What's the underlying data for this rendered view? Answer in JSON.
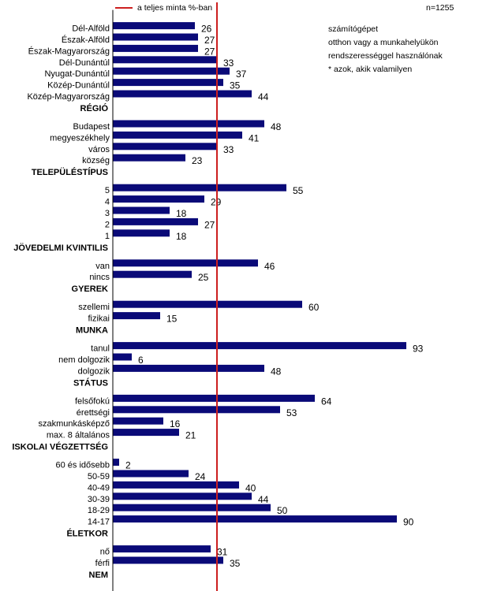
{
  "chart_data": {
    "type": "bar",
    "orientation": "horizontal",
    "xlim": [
      0,
      63
    ],
    "reference": {
      "label": "a teljes minta %-ban",
      "value": 33
    },
    "sample_size": "n=1255",
    "note_lines": [
      "számítógépet",
      "otthon vagy a munkahelyükön",
      "rendszerességgel használónak",
      "* azok, akik valamilyen"
    ],
    "colors": {
      "bar": "#0a0a78",
      "reference_line": "#cc1f1f",
      "axis": "#000000"
    },
    "groups": [
      {
        "title": "NEM",
        "items": [
          {
            "label": "férfi",
            "value": 35
          },
          {
            "label": "nő",
            "value": 31
          }
        ]
      },
      {
        "title": "ÉLETKOR",
        "items": [
          {
            "label": "14-17",
            "value": 90
          },
          {
            "label": "18-29",
            "value": 50
          },
          {
            "label": "30-39",
            "value": 44
          },
          {
            "label": "40-49",
            "value": 40
          },
          {
            "label": "50-59",
            "value": 24
          },
          {
            "label": "60 és idősebb",
            "value": 2
          }
        ]
      },
      {
        "title": "ISKOLAI VÉGZETTSÉG",
        "items": [
          {
            "label": "max. 8 általános",
            "value": 21
          },
          {
            "label": "szakmunkásképző",
            "value": 16
          },
          {
            "label": "érettségi",
            "value": 53
          },
          {
            "label": "felsőfokú",
            "value": 64
          }
        ]
      },
      {
        "title": "STÁTUS",
        "items": [
          {
            "label": "dolgozik",
            "value": 48
          },
          {
            "label": "nem dolgozik",
            "value": 6
          },
          {
            "label": "tanul",
            "value": 93
          }
        ]
      },
      {
        "title": "MUNKA",
        "items": [
          {
            "label": "fizikai",
            "value": 15
          },
          {
            "label": "szellemi",
            "value": 60
          }
        ]
      },
      {
        "title": "GYEREK",
        "items": [
          {
            "label": "nincs",
            "value": 25
          },
          {
            "label": "van",
            "value": 46
          }
        ]
      },
      {
        "title": "JÖVEDELMI KVINTILIS",
        "items": [
          {
            "label": "1",
            "value": 18
          },
          {
            "label": "2",
            "value": 27
          },
          {
            "label": "3",
            "value": 18
          },
          {
            "label": "4",
            "value": 29
          },
          {
            "label": "5",
            "value": 55
          }
        ]
      },
      {
        "title": "TELEPÜLÉSTÍPUS",
        "items": [
          {
            "label": "község",
            "value": 23
          },
          {
            "label": "város",
            "value": 33
          },
          {
            "label": "megyeszékhely",
            "value": 41
          },
          {
            "label": "Budapest",
            "value": 48
          }
        ]
      },
      {
        "title": "RÉGIÓ",
        "items": [
          {
            "label": "Közép-Magyarország",
            "value": 44
          },
          {
            "label": "Közép-Dunántúl",
            "value": 35
          },
          {
            "label": "Nyugat-Dunántúl",
            "value": 37
          },
          {
            "label": "Dél-Dunántúl",
            "value": 33
          },
          {
            "label": "Észak-Magyarország",
            "value": 27
          },
          {
            "label": "Észak-Alföld",
            "value": 27
          },
          {
            "label": "Dél-Alföld",
            "value": 26
          }
        ]
      }
    ]
  }
}
